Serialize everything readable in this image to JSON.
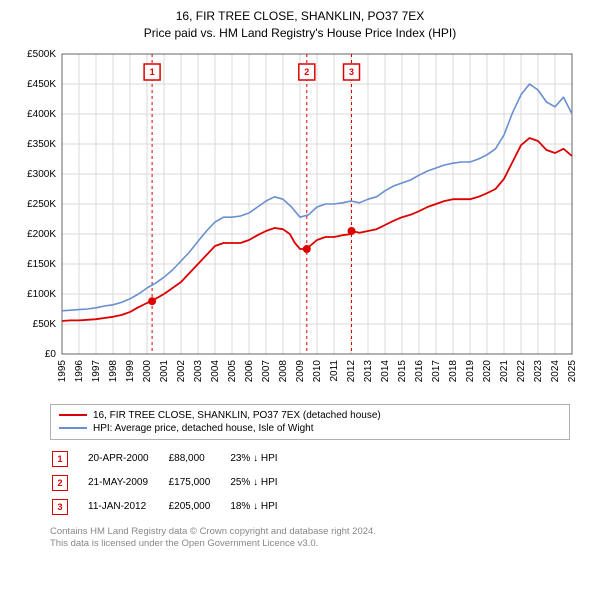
{
  "title_line1": "16, FIR TREE CLOSE, SHANKLIN, PO37 7EX",
  "title_line2": "Price paid vs. HM Land Registry's House Price Index (HPI)",
  "chart": {
    "type": "line",
    "background_color": "#ffffff",
    "grid_color": "#d9d9d9",
    "plot_border_color": "#666666",
    "x_axis": {
      "label": "",
      "tick_fontsize": 10,
      "rotation": -90,
      "ticks": [
        "1995",
        "1996",
        "1997",
        "1998",
        "1999",
        "2000",
        "2001",
        "2002",
        "2003",
        "2004",
        "2005",
        "2006",
        "2007",
        "2008",
        "2009",
        "2010",
        "2011",
        "2012",
        "2013",
        "2014",
        "2015",
        "2016",
        "2017",
        "2018",
        "2019",
        "2020",
        "2021",
        "2022",
        "2023",
        "2024",
        "2025"
      ],
      "xmin": 1995,
      "xmax": 2025
    },
    "y_axis": {
      "label": "",
      "tick_fontsize": 10,
      "ticks": [
        "£0",
        "£50K",
        "£100K",
        "£150K",
        "£200K",
        "£250K",
        "£300K",
        "£350K",
        "£400K",
        "£450K",
        "£500K"
      ],
      "tick_values": [
        0,
        50000,
        100000,
        150000,
        200000,
        250000,
        300000,
        350000,
        400000,
        450000,
        500000
      ],
      "ymin": 0,
      "ymax": 500000
    },
    "series": [
      {
        "name": "price_paid",
        "label": "16, FIR TREE CLOSE, SHANKLIN, PO37 7EX (detached house)",
        "color": "#dd0000",
        "line_width": 1.8,
        "x_years": [
          1995,
          1995.5,
          1996,
          1996.5,
          1997,
          1997.5,
          1998,
          1998.5,
          1999,
          1999.5,
          2000,
          2000.3,
          2000.5,
          2001,
          2001.5,
          2002,
          2002.5,
          2003,
          2003.5,
          2004,
          2004.5,
          2005,
          2005.5,
          2006,
          2006.5,
          2007,
          2007.5,
          2008,
          2008.4,
          2008.7,
          2009,
          2009.4,
          2009.5,
          2010,
          2010.5,
          2011,
          2011.5,
          2012,
          2012.03,
          2012.5,
          2013,
          2013.5,
          2014,
          2014.5,
          2015,
          2015.5,
          2016,
          2016.5,
          2017,
          2017.5,
          2018,
          2018.5,
          2019,
          2019.5,
          2020,
          2020.5,
          2021,
          2021.5,
          2022,
          2022.5,
          2023,
          2023.5,
          2024,
          2024.5,
          2025
        ],
        "y_values": [
          55000,
          56000,
          56000,
          57000,
          58000,
          60000,
          62000,
          65000,
          70000,
          78000,
          85000,
          88000,
          92000,
          100000,
          110000,
          120000,
          135000,
          150000,
          165000,
          180000,
          185000,
          185000,
          185000,
          190000,
          198000,
          205000,
          210000,
          208000,
          200000,
          185000,
          175000,
          175000,
          178000,
          190000,
          195000,
          195000,
          198000,
          200000,
          205000,
          202000,
          205000,
          208000,
          215000,
          222000,
          228000,
          232000,
          238000,
          245000,
          250000,
          255000,
          258000,
          258000,
          258000,
          262000,
          268000,
          275000,
          292000,
          320000,
          348000,
          360000,
          355000,
          340000,
          335000,
          342000,
          330000
        ]
      },
      {
        "name": "hpi",
        "label": "HPI: Average price, detached house, Isle of Wight",
        "color": "#6a8fd0",
        "line_width": 1.6,
        "x_years": [
          1995,
          1995.5,
          1996,
          1996.5,
          1997,
          1997.5,
          1998,
          1998.5,
          1999,
          1999.5,
          2000,
          2000.5,
          2001,
          2001.5,
          2002,
          2002.5,
          2003,
          2003.5,
          2004,
          2004.5,
          2005,
          2005.5,
          2006,
          2006.5,
          2007,
          2007.5,
          2008,
          2008.5,
          2009,
          2009.5,
          2010,
          2010.5,
          2011,
          2011.5,
          2012,
          2012.5,
          2013,
          2013.5,
          2014,
          2014.5,
          2015,
          2015.5,
          2016,
          2016.5,
          2017,
          2017.5,
          2018,
          2018.5,
          2019,
          2019.5,
          2020,
          2020.5,
          2021,
          2021.5,
          2022,
          2022.5,
          2023,
          2023.5,
          2024,
          2024.5,
          2025
        ],
        "y_values": [
          72000,
          73000,
          74000,
          75000,
          77000,
          80000,
          82000,
          86000,
          92000,
          100000,
          110000,
          118000,
          128000,
          140000,
          155000,
          170000,
          188000,
          205000,
          220000,
          228000,
          228000,
          230000,
          235000,
          245000,
          255000,
          262000,
          258000,
          245000,
          228000,
          232000,
          245000,
          250000,
          250000,
          252000,
          255000,
          252000,
          258000,
          262000,
          272000,
          280000,
          285000,
          290000,
          298000,
          305000,
          310000,
          315000,
          318000,
          320000,
          320000,
          325000,
          332000,
          342000,
          365000,
          402000,
          432000,
          450000,
          440000,
          420000,
          412000,
          428000,
          400000
        ]
      }
    ],
    "markers": [
      {
        "n": "1",
        "x_year": 2000.3,
        "y": 88000,
        "dash_color": "#dd0000"
      },
      {
        "n": "2",
        "x_year": 2009.4,
        "y": 175000,
        "dash_color": "#dd0000"
      },
      {
        "n": "3",
        "x_year": 2012.03,
        "y": 205000,
        "dash_color": "#dd0000"
      }
    ],
    "marker_point_radius": 4,
    "marker_point_fill": "#dd0000"
  },
  "legend": {
    "border_color": "#b0b0b0",
    "rows": [
      {
        "color": "#dd0000",
        "text": "16, FIR TREE CLOSE, SHANKLIN, PO37 7EX (detached house)"
      },
      {
        "color": "#6a8fd0",
        "text": "HPI: Average price, detached house, Isle of Wight"
      }
    ]
  },
  "marker_table": {
    "rows": [
      {
        "n": "1",
        "date": "20-APR-2000",
        "price": "£88,000",
        "delta": "23% ↓ HPI"
      },
      {
        "n": "2",
        "date": "21-MAY-2009",
        "price": "£175,000",
        "delta": "25% ↓ HPI"
      },
      {
        "n": "3",
        "date": "11-JAN-2012",
        "price": "£205,000",
        "delta": "18% ↓ HPI"
      }
    ]
  },
  "footer_line1": "Contains HM Land Registry data © Crown copyright and database right 2024.",
  "footer_line2": "This data is licensed under the Open Government Licence v3.0.",
  "footer_color": "#888888"
}
